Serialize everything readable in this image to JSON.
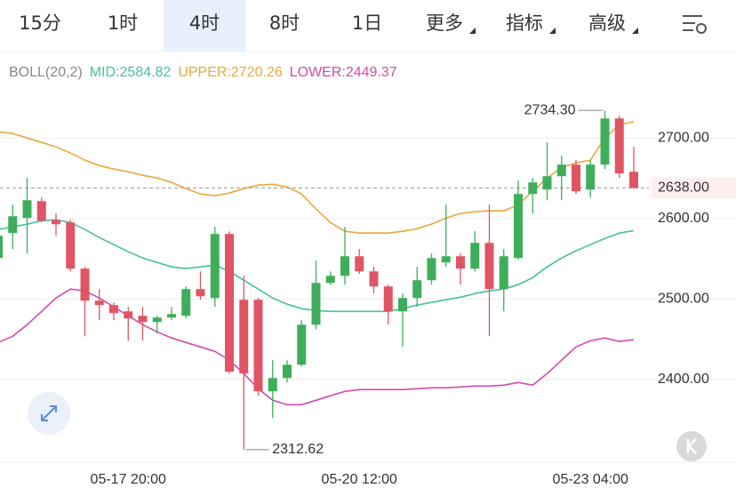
{
  "tabs": [
    "15分",
    "1时",
    "4时",
    "8时",
    "1日"
  ],
  "selected_tab": 2,
  "menus": [
    "更多",
    "指标",
    "高级"
  ],
  "chart_data": {
    "type": "candlestick",
    "categories": [
      null,
      null,
      null,
      null,
      null,
      null,
      null,
      null,
      null,
      "05-17 20:00",
      null,
      null,
      null,
      null,
      null,
      null,
      null,
      null,
      null,
      null,
      null,
      null,
      null,
      null,
      null,
      "05-20 12:00",
      null,
      null,
      null,
      null,
      null,
      null,
      null,
      null,
      null,
      null,
      null,
      null,
      null,
      null,
      null,
      "05-23 04:00",
      null,
      null,
      null
    ],
    "open": [
      2550.8,
      2581.8,
      2600.6,
      2621.5,
      2598.3,
      2595,
      2537.6,
      2497.8,
      2492.3,
      2484.5,
      2479,
      2471.3,
      2476.8,
      2479,
      2512.2,
      2501.1,
      2580.7,
      2498.9,
      2498.9,
      2385.1,
      2401.7,
      2418.2,
      2467.9,
      2519.9,
      2528.7,
      2553,
      2534.2,
      2515.5,
      2484.5,
      2501.1,
      2523.2,
      2545.3,
      2553,
      2537.6,
      2569.6,
      2512.2,
      2550.8,
      2630.4,
      2635.9,
      2652.5,
      2666.9,
      2635.9,
      2666.9,
      2724.3,
      2658
    ],
    "high": [
      2586.2,
      2617.1,
      2650.3,
      2626,
      2606.1,
      2598.3,
      2539.8,
      2512.2,
      2495.6,
      2490.1,
      2490.1,
      2479,
      2490.1,
      2515.5,
      2534.2,
      2589.5,
      2584,
      2528.7,
      2501.1,
      2423.8,
      2423.8,
      2473.5,
      2547.5,
      2534.2,
      2589.5,
      2561.9,
      2539.8,
      2517.7,
      2506.6,
      2539.8,
      2556.4,
      2617.1,
      2556.4,
      2584,
      2617.1,
      2561.9,
      2647,
      2650.3,
      2694.5,
      2678,
      2672.4,
      2672.4,
      2734.3,
      2727.6,
      2689
    ],
    "low": [
      2545.3,
      2561.9,
      2556.4,
      2595,
      2578.5,
      2534.2,
      2453.6,
      2473.5,
      2473.5,
      2448,
      2448,
      2456.9,
      2473.5,
      2475.7,
      2498.9,
      2490.1,
      2407.2,
      2312.62,
      2379.6,
      2351.9,
      2396.1,
      2416,
      2462.4,
      2517.7,
      2517.7,
      2531,
      2506.6,
      2467.9,
      2440.3,
      2490.1,
      2517.7,
      2539.8,
      2517.7,
      2534.2,
      2453.6,
      2484.5,
      2548.6,
      2606.1,
      2622.6,
      2622.6,
      2630.4,
      2626,
      2661.3,
      2650.3,
      2637
    ],
    "close": [
      2578.5,
      2602.8,
      2622.6,
      2597.2,
      2592.8,
      2537.6,
      2497.8,
      2492.3,
      2482.3,
      2475.7,
      2471.3,
      2476.8,
      2481.2,
      2512.2,
      2503.3,
      2580.7,
      2409.4,
      2407.2,
      2385.1,
      2401.7,
      2418.2,
      2467.9,
      2519.9,
      2528.7,
      2553,
      2534.2,
      2515.5,
      2484.5,
      2501.1,
      2523.2,
      2550.8,
      2553,
      2537.6,
      2569.6,
      2512.2,
      2553,
      2630.4,
      2644.8,
      2652.5,
      2666.9,
      2633.7,
      2666.9,
      2724.3,
      2655.8,
      2638.0
    ],
    "up_color": "#3fae5a",
    "down_color": "#e05563",
    "bollinger": {
      "label": "BOLL(20,2)",
      "mid": {
        "label": "MID:2584.82",
        "color": "#45c1a0",
        "values": [
          2586.2,
          2589.5,
          2592.8,
          2597.2,
          2598.3,
          2595,
          2586.2,
          2576.2,
          2567.4,
          2558.6,
          2550.8,
          2545.3,
          2539.8,
          2537.6,
          2539.8,
          2541.9,
          2534.2,
          2523.2,
          2512.2,
          2501.1,
          2493.4,
          2487.8,
          2485.6,
          2484.5,
          2484.5,
          2484.5,
          2484.5,
          2484.5,
          2487.8,
          2492.3,
          2495.6,
          2498.9,
          2502.2,
          2506.6,
          2509.9,
          2512.2,
          2517.7,
          2526.5,
          2539.8,
          2550.8,
          2559.7,
          2567.4,
          2575.1,
          2581.8,
          2584.82
        ]
      },
      "upper": {
        "label": "UPPER:2720.26",
        "color": "#e8a93a",
        "values": [
          2707.7,
          2705.5,
          2700,
          2694.5,
          2689,
          2681.2,
          2672.4,
          2665.7,
          2661.3,
          2658,
          2653.6,
          2650.3,
          2644.8,
          2637,
          2630.4,
          2628.2,
          2631.5,
          2637,
          2641.4,
          2642.5,
          2639.2,
          2630.4,
          2611.6,
          2595,
          2584,
          2581.8,
          2581.8,
          2581.8,
          2584,
          2587.3,
          2592.8,
          2600.6,
          2606.1,
          2608.3,
          2609.4,
          2609.4,
          2617.1,
          2633.7,
          2650.3,
          2663.5,
          2669,
          2672.4,
          2700,
          2716.6,
          2720.26
        ]
      },
      "lower": {
        "label": "LOWER:2449.37",
        "color": "#d24bb0",
        "values": [
          2445.8,
          2453.6,
          2467.9,
          2484.5,
          2501.1,
          2512.2,
          2509.9,
          2501.1,
          2490.1,
          2479,
          2467.9,
          2459.1,
          2451.4,
          2445.8,
          2440.3,
          2434.8,
          2423.8,
          2407.2,
          2388.4,
          2374,
          2368.5,
          2368.5,
          2374,
          2379.6,
          2385.1,
          2387.3,
          2387.3,
          2387.3,
          2387.3,
          2388.4,
          2389.5,
          2389.5,
          2390.6,
          2391.7,
          2391.7,
          2392.8,
          2396.1,
          2392.8,
          2407.2,
          2423.8,
          2440.3,
          2448,
          2451.4,
          2447,
          2449.37
        ]
      }
    },
    "ylim": [
      2297,
      2761
    ],
    "yticks": [
      {
        "value": 2400,
        "label": "2400.00"
      },
      {
        "value": 2500,
        "label": "2500.00"
      },
      {
        "value": 2600,
        "label": "2600.00"
      },
      {
        "value": 2700,
        "label": "2700.00"
      }
    ],
    "last_price": {
      "value": 2638,
      "label": "2638.00"
    },
    "max_label": {
      "value": 2734.3,
      "label": "2734.30"
    },
    "min_label": {
      "value": 2312.62,
      "label": "2312.62"
    },
    "grid": true
  }
}
